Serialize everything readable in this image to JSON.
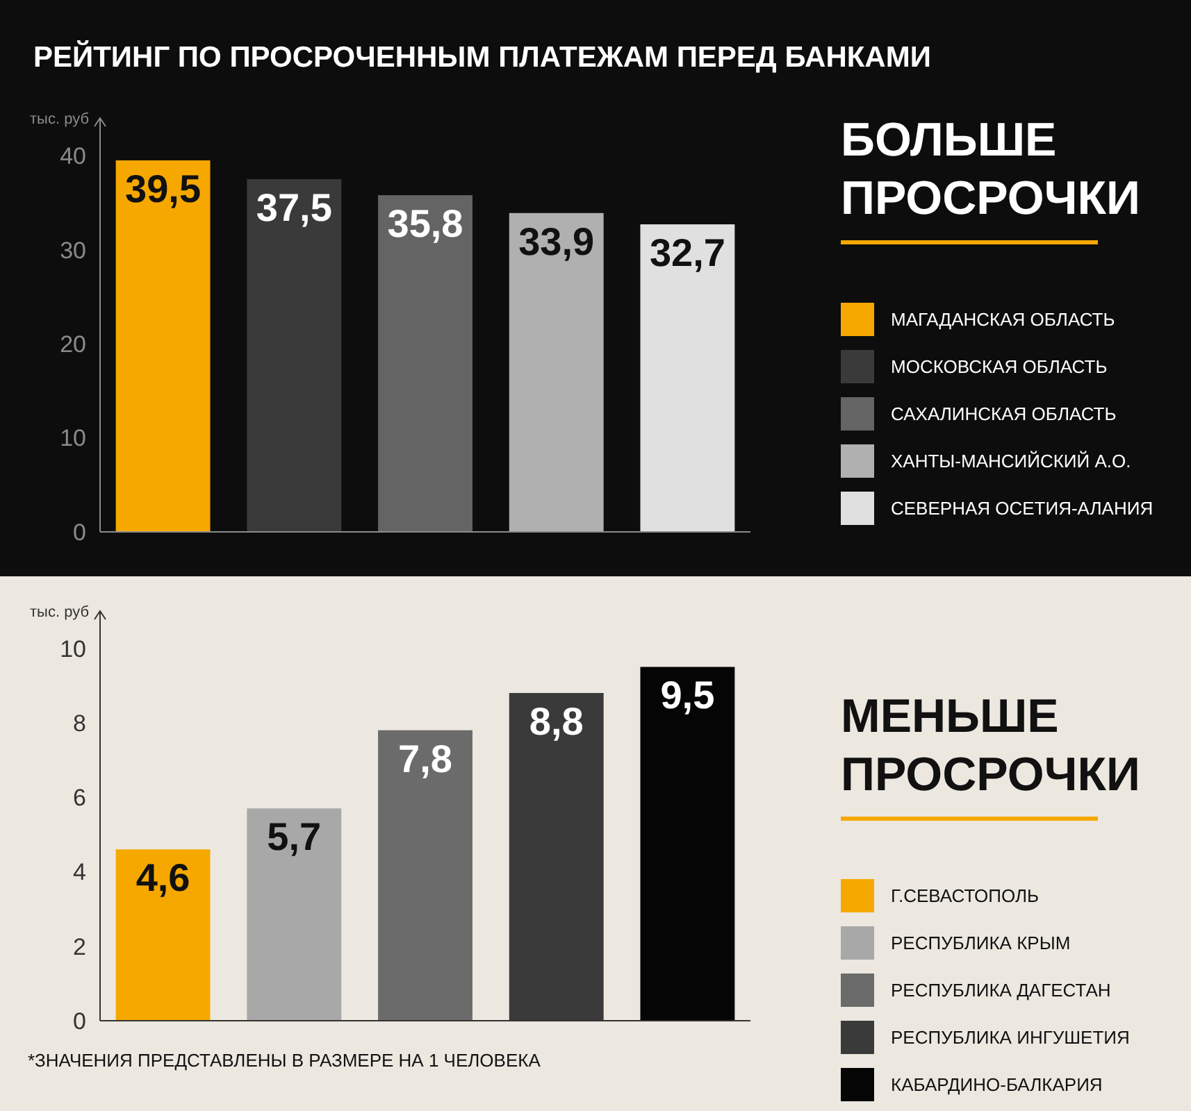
{
  "chart_data": [
    {
      "type": "bar",
      "title": "РЕЙТИНГ ПО ПРОСРОЧЕННЫМ ПЛАТЕЖАМ ПЕРЕД БАНКАМИ",
      "legend_title": "БОЛЬШЕ ПРОСРОЧКИ",
      "ylabel": "тыс. руб",
      "categories": [
        null
      ],
      "ylim": [
        0,
        44
      ],
      "yticks": [
        0,
        10,
        20,
        30,
        40
      ],
      "grid": false,
      "legend": "right",
      "series": [
        {
          "name": "МАГАДАНСКАЯ ОБЛАСТЬ",
          "color": "#f6a800",
          "values": [
            39.5
          ],
          "value_labels": [
            "39,5"
          ]
        },
        {
          "name": "МОСКОВСКАЯ ОБЛАСТЬ",
          "color": "#3a3a3a",
          "values": [
            37.5
          ],
          "value_labels": [
            "37,5"
          ]
        },
        {
          "name": "САХАЛИНСКАЯ ОБЛАСТЬ",
          "color": "#646464",
          "values": [
            35.8
          ],
          "value_labels": [
            "35,8"
          ]
        },
        {
          "name": "ХАНТЫ-МАНСИЙСКИЙ А.О.",
          "color": "#b0b0b0",
          "values": [
            33.9
          ],
          "value_labels": [
            "33,9"
          ]
        },
        {
          "name": "СЕВЕРНАЯ ОСЕТИЯ-АЛАНИЯ",
          "color": "#e0e0e0",
          "values": [
            32.7
          ],
          "value_labels": [
            "32,7"
          ]
        }
      ]
    },
    {
      "type": "bar",
      "legend_title": "МЕНЬШЕ ПРОСРОЧКИ",
      "ylabel": "тыс. руб",
      "categories": [
        null
      ],
      "ylim": [
        0,
        11
      ],
      "yticks": [
        0,
        2,
        4,
        6,
        8,
        10
      ],
      "grid": false,
      "legend": "right",
      "annotations": [
        "*ЗНАЧЕНИЯ ПРЕДСТАВЛЕНЫ В РАЗМЕРЕ НА 1 ЧЕЛОВЕКА"
      ],
      "series": [
        {
          "name": "Г.СЕВАСТОПОЛЬ",
          "color": "#f6a800",
          "values": [
            4.6
          ],
          "value_labels": [
            "4,6"
          ]
        },
        {
          "name": "РЕСПУБЛИКА КРЫМ",
          "color": "#a8a8a8",
          "values": [
            5.7
          ],
          "value_labels": [
            "5,7"
          ]
        },
        {
          "name": "РЕСПУБЛИКА ДАГЕСТАН",
          "color": "#6b6b6b",
          "values": [
            7.8
          ],
          "value_labels": [
            "7,8"
          ]
        },
        {
          "name": "РЕСПУБЛИКА ИНГУШЕТИЯ",
          "color": "#3a3a3a",
          "values": [
            8.8
          ],
          "value_labels": [
            "8,8"
          ]
        },
        {
          "name": "КАБАРДИНО-БАЛКАРИЯ",
          "color": "#050505",
          "values": [
            9.5
          ],
          "value_labels": [
            "9,5"
          ]
        }
      ]
    }
  ]
}
